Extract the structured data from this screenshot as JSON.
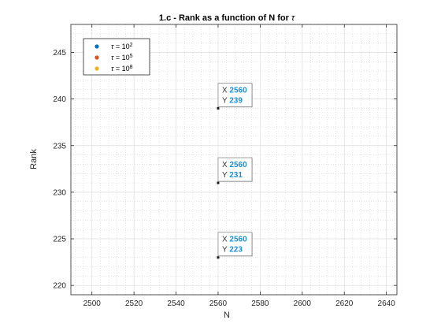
{
  "chart_data": {
    "type": "scatter",
    "title_text": "1.c - Rank as a function of N for ",
    "title_symbol": "τ",
    "xlabel": "N",
    "ylabel": "Rank",
    "xlim": [
      2490,
      2645
    ],
    "ylim": [
      219,
      248
    ],
    "x_ticks": [
      2500,
      2520,
      2540,
      2560,
      2580,
      2600,
      2620,
      2640
    ],
    "y_ticks": [
      220,
      225,
      230,
      235,
      240,
      245
    ],
    "grid": true,
    "minor_grid": true,
    "legend_position": "top-left",
    "series": [
      {
        "name": "τ = 10^2",
        "color": "#0072bd",
        "points": [
          [
            2560,
            239
          ]
        ]
      },
      {
        "name": "τ = 10^5",
        "color": "#d95319",
        "points": [
          [
            2560,
            231
          ]
        ]
      },
      {
        "name": "τ = 10^8",
        "color": "#edb120",
        "points": [
          [
            2560,
            223
          ]
        ]
      }
    ],
    "datatips": [
      {
        "x_label": "X",
        "y_label": "Y",
        "x": "2560",
        "y": "239"
      },
      {
        "x_label": "X",
        "y_label": "Y",
        "x": "2560",
        "y": "231"
      },
      {
        "x_label": "X",
        "y_label": "Y",
        "x": "2560",
        "y": "223"
      }
    ]
  }
}
